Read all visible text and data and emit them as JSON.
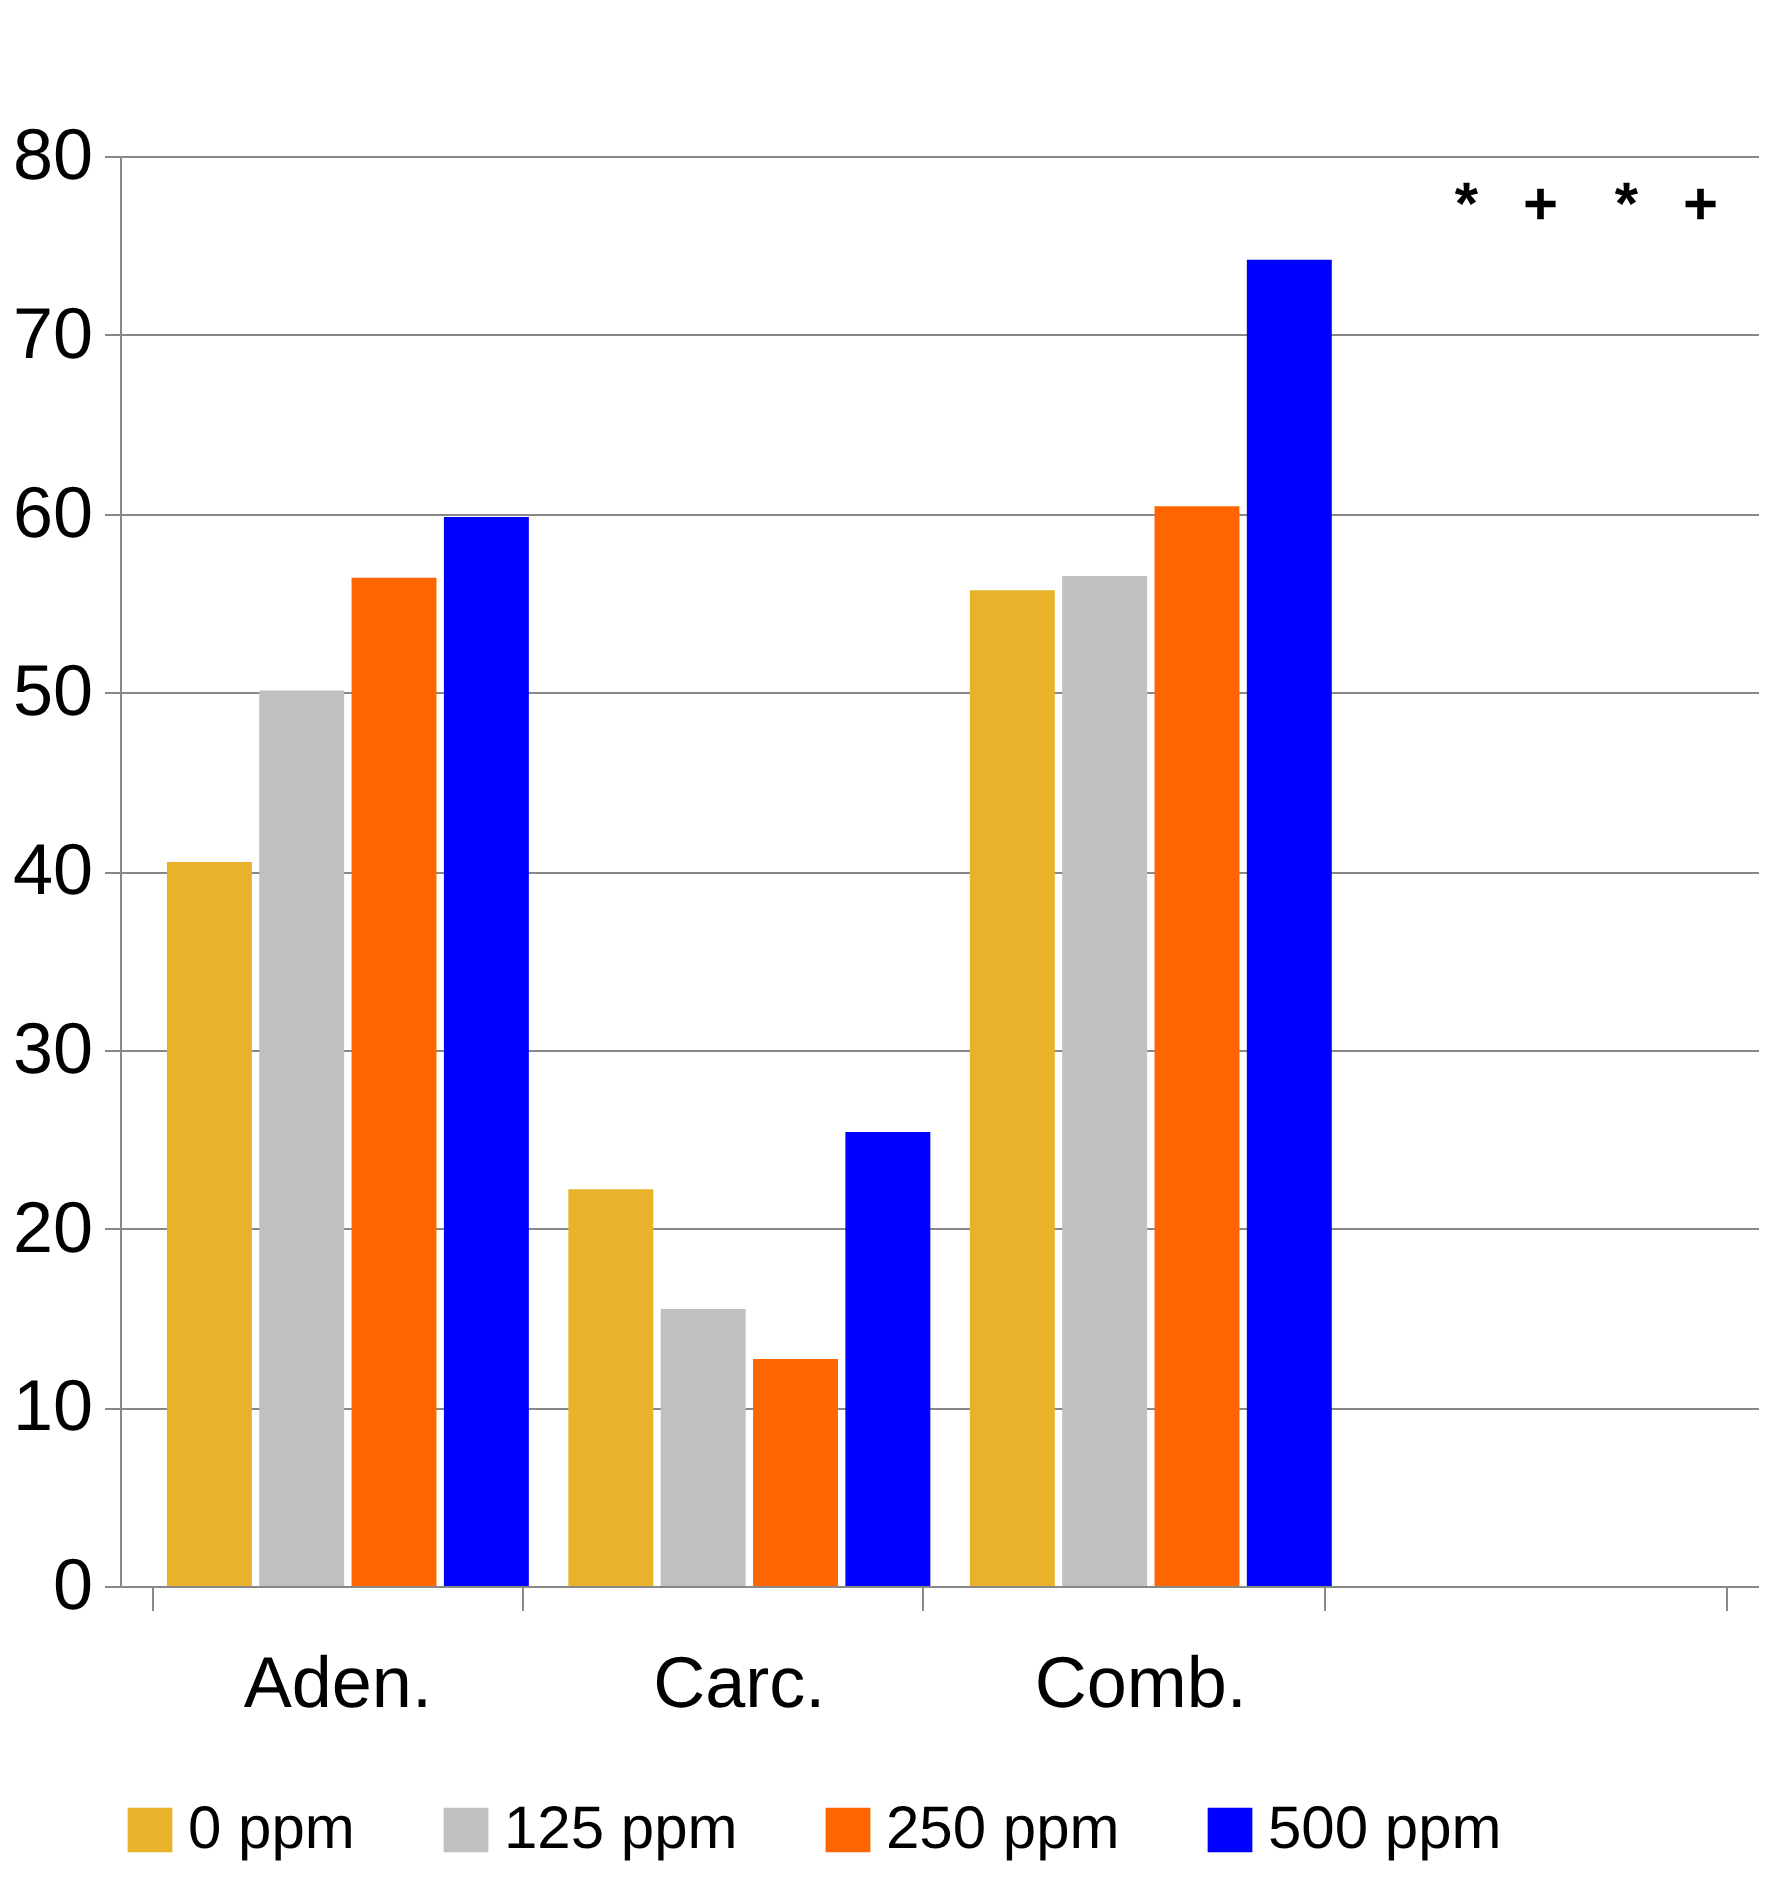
{
  "chart_data": {
    "type": "bar",
    "categories": [
      "Aden.",
      "Carc.",
      "Comb.",
      null
    ],
    "series": [
      {
        "name": "0 ppm",
        "color": "#e8b32a",
        "values": [
          40.5,
          22.2,
          55.7,
          null
        ]
      },
      {
        "name": "125 ppm",
        "color": "#c0c0c0",
        "values": [
          50.1,
          15.5,
          56.5,
          null
        ]
      },
      {
        "name": "250 ppm",
        "color": "#ff6600",
        "values": [
          56.4,
          12.7,
          60.4,
          null
        ]
      },
      {
        "name": "500 ppm",
        "color": "#0000ff",
        "values": [
          59.8,
          25.4,
          74.2,
          null
        ]
      }
    ],
    "ylim": [
      0,
      80
    ],
    "yticks": [
      0,
      10,
      20,
      30,
      40,
      50,
      60,
      70,
      80
    ],
    "grid": "y",
    "legend": "bottom",
    "annotations": [
      "+",
      "*",
      "+",
      "*"
    ]
  }
}
